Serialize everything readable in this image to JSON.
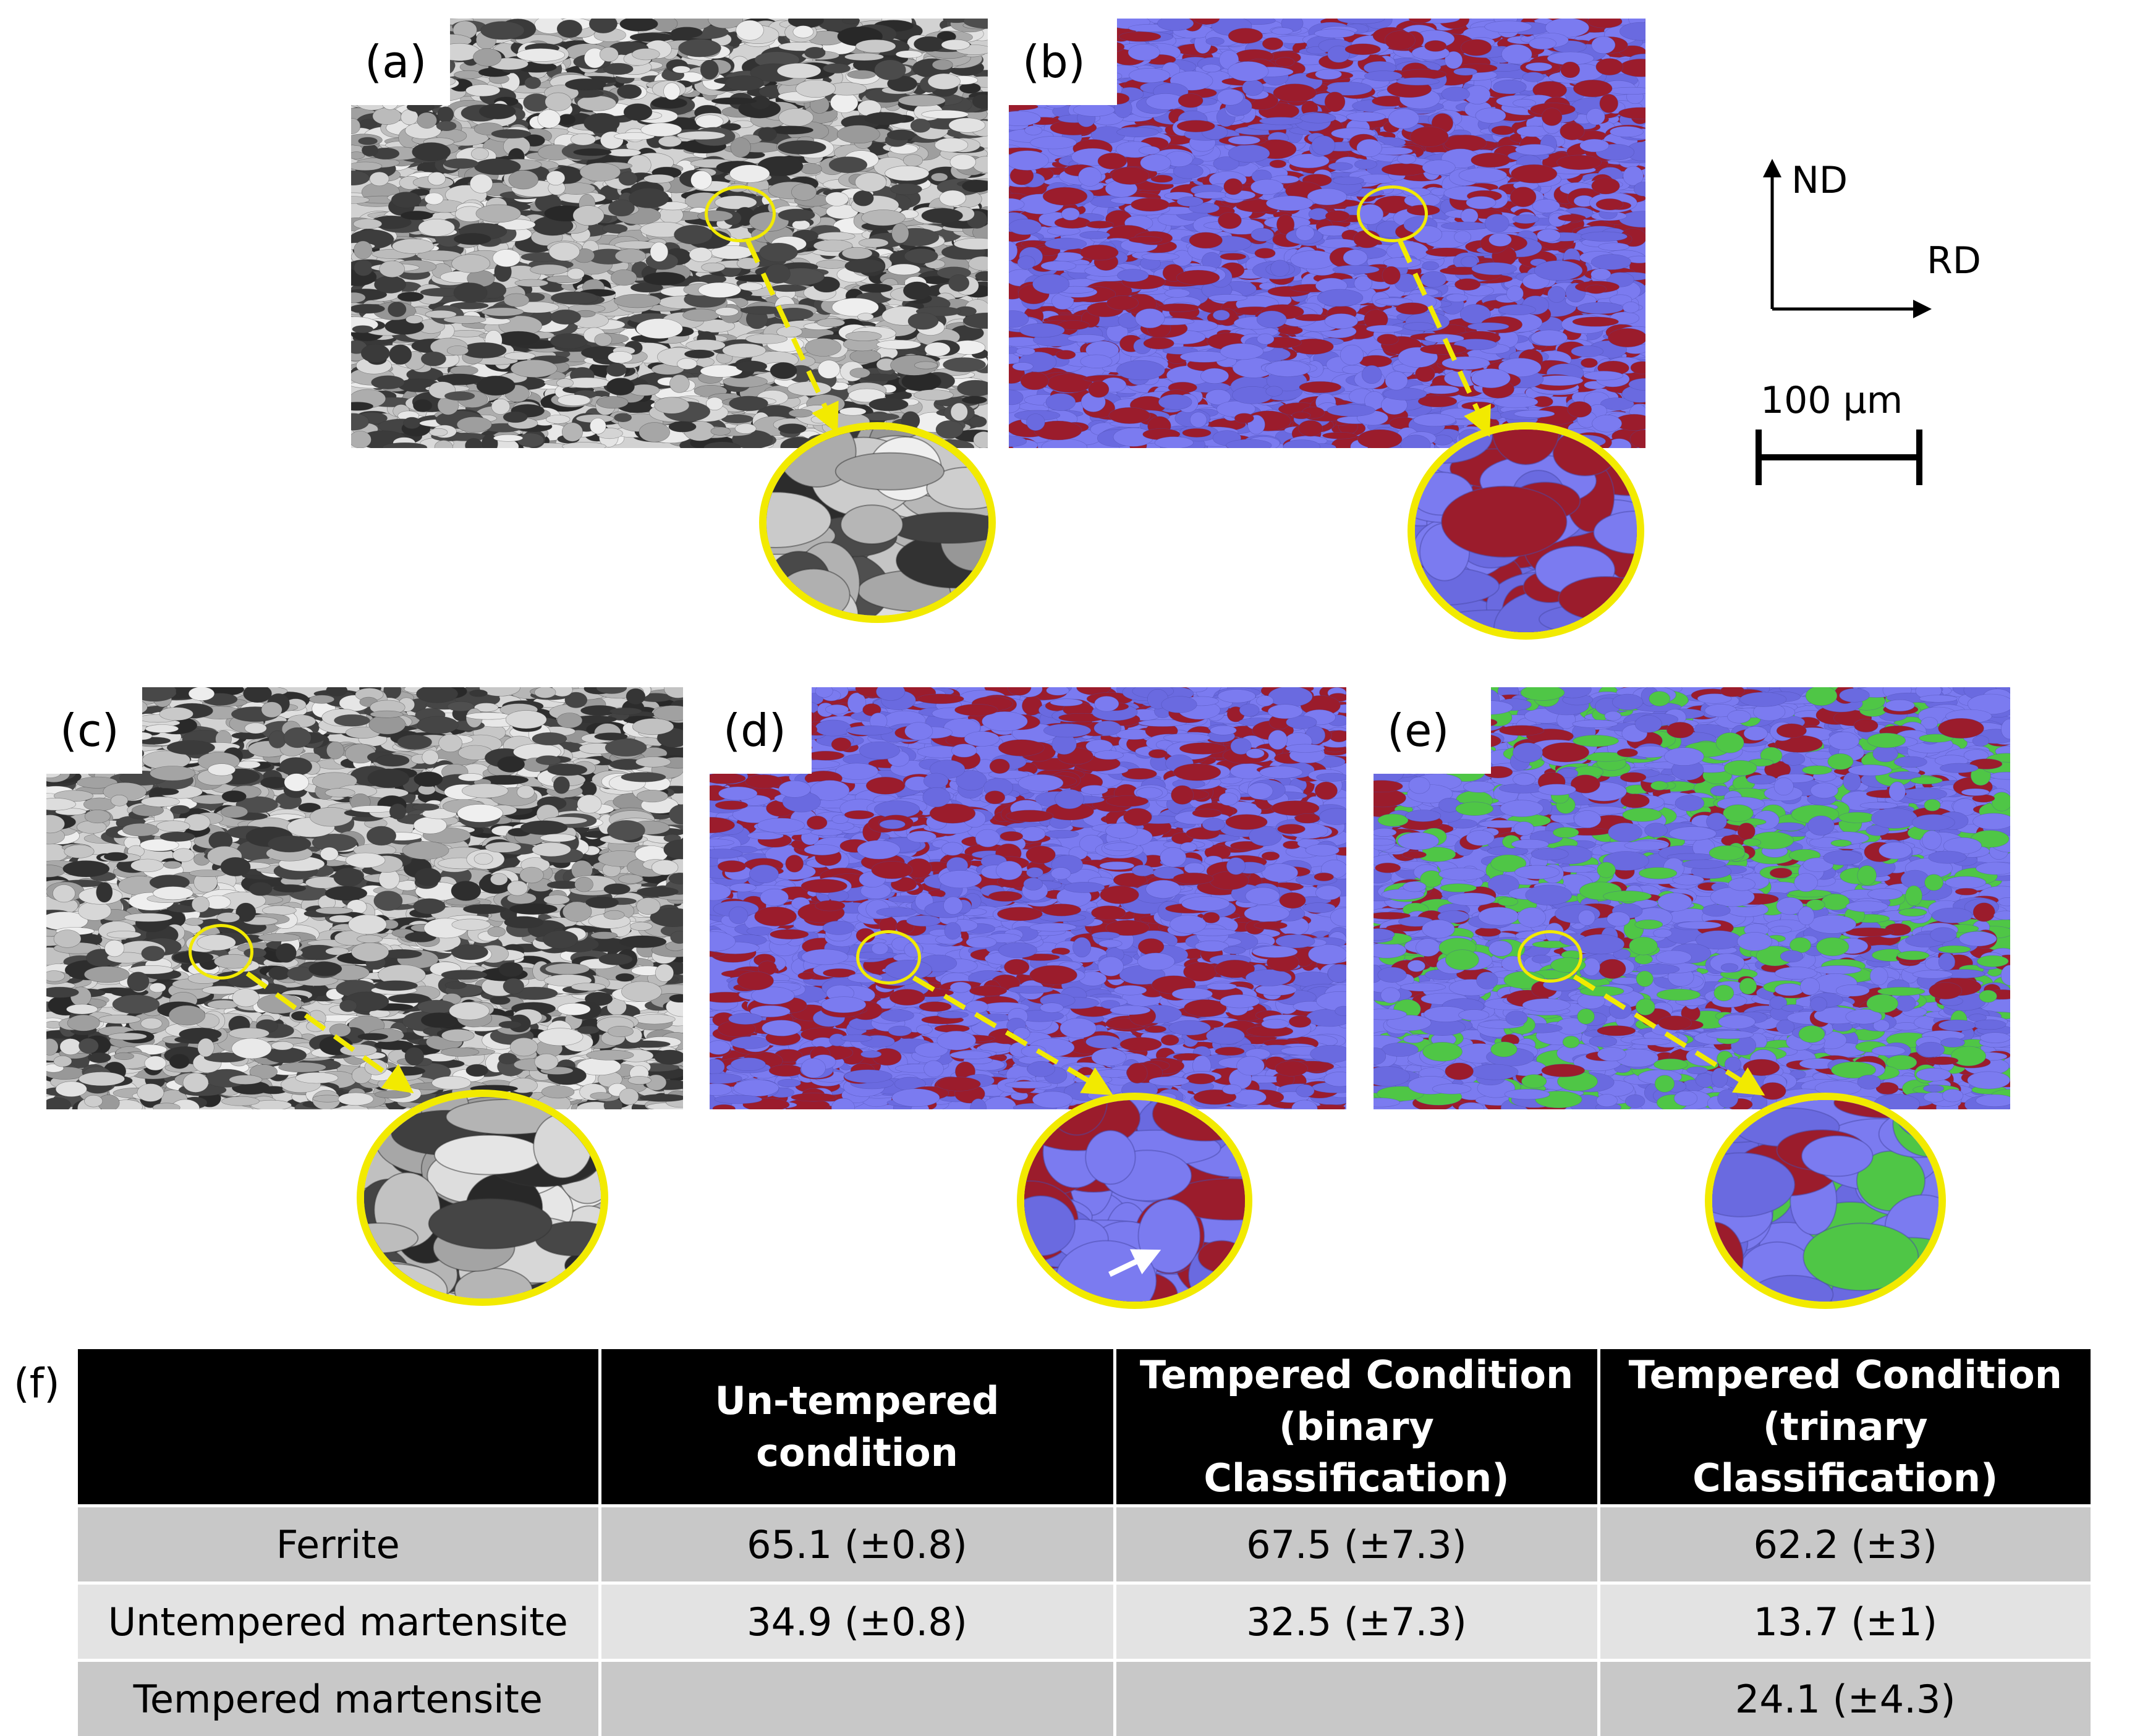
{
  "panels": {
    "a": {
      "label": "(a)",
      "style": "gray"
    },
    "b": {
      "label": "(b)",
      "style": "binary"
    },
    "c": {
      "label": "(c)",
      "style": "gray"
    },
    "d": {
      "label": "(d)",
      "style": "binary"
    },
    "e": {
      "label": "(e)",
      "style": "trinary"
    }
  },
  "orientation": {
    "nd": "ND",
    "rd": "RD"
  },
  "scale_bar": {
    "label": "100 µm"
  },
  "table": {
    "panel_label": "(f)",
    "headers": [
      "",
      "Un-tempered condition",
      "Tempered Condition\n(binary Classification)",
      "Tempered Condition\n(trinary Classification)"
    ],
    "rows": [
      {
        "label": "Ferrite",
        "values": [
          "65.1 (±0.8)",
          "67.5 (±7.3)",
          "62.2 (±3)"
        ]
      },
      {
        "label": "Untempered martensite",
        "values": [
          "34.9 (±0.8)",
          "32.5 (±7.3)",
          "13.7 (±1)"
        ]
      },
      {
        "label": "Tempered martensite",
        "values": [
          "",
          "",
          "24.1 (±4.3)"
        ]
      }
    ]
  },
  "colors": {
    "ferrite": "#7b7bf0",
    "untempered_martensite": "#9b1c2c",
    "tempered_martensite": "#4fc646",
    "highlight": "#f2ea00"
  }
}
